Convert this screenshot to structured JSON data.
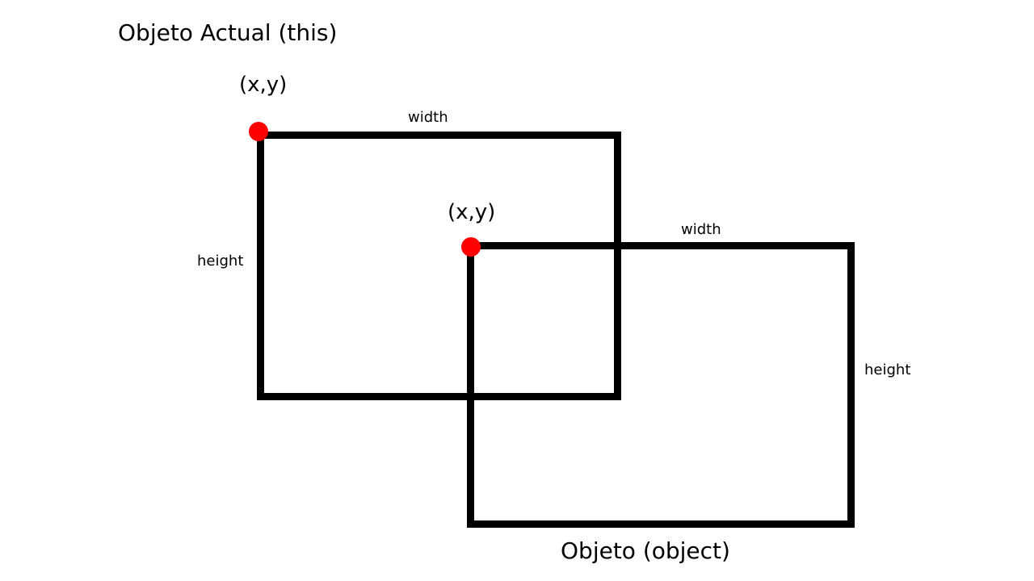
{
  "current_object": {
    "title": "Objeto Actual (this)",
    "origin_label": "(x,y)",
    "width_label": "width",
    "height_label": "height"
  },
  "other_object": {
    "title": "Objeto  (object)",
    "origin_label": "(x,y)",
    "width_label": "width",
    "height_label": "height"
  },
  "colors": {
    "outline": "#000000",
    "origin_point": "#ff0000",
    "background": "#ffffff"
  }
}
